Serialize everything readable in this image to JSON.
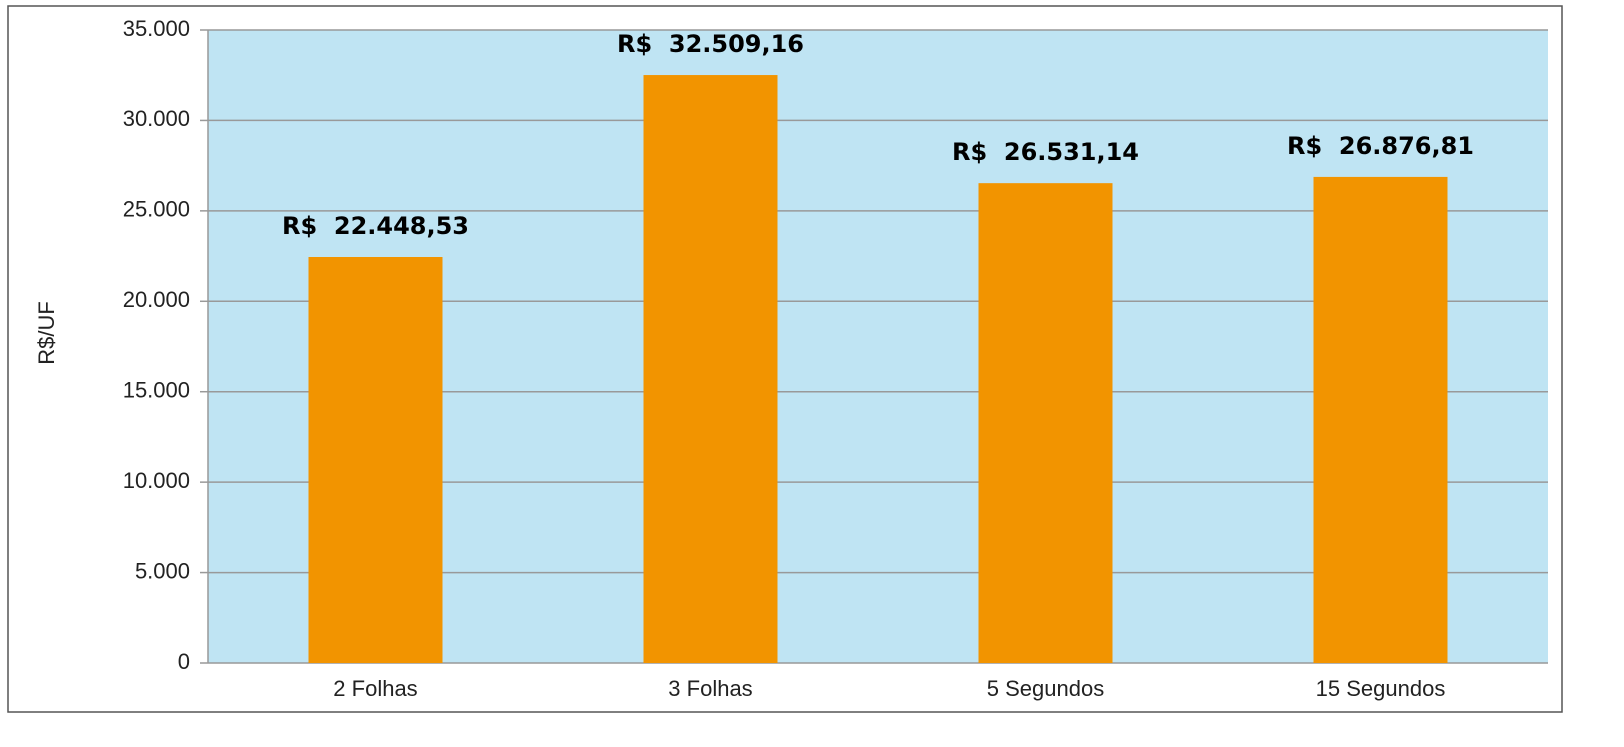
{
  "chart_data": {
    "type": "bar",
    "y_label": "R$/UF",
    "categories": [
      "2 Folhas",
      "3 Folhas",
      "5 Segundos",
      "15 Segundos"
    ],
    "values": [
      22448.53,
      32509.16,
      26531.14,
      26876.81
    ],
    "value_labels": [
      "R$  22.448,53",
      "R$  32.509,16",
      "R$  26.531,14",
      "R$  26.876,81"
    ],
    "color": "#f29400",
    "plot_background": "#bfe4f3",
    "ylim": [
      0,
      35000
    ],
    "yticks": [
      0,
      {
        "value": 5000,
        "label": "5.000"
      },
      {
        "value": 10000,
        "label": "10.000"
      },
      {
        "value": 15000,
        "label": "15.000"
      },
      {
        "value": 20000,
        "label": "20.000"
      },
      {
        "value": 25000,
        "label": "25.000"
      },
      {
        "value": 30000,
        "label": "30.000"
      },
      {
        "value": 35000,
        "label": "35.000"
      }
    ],
    "grid": true
  }
}
